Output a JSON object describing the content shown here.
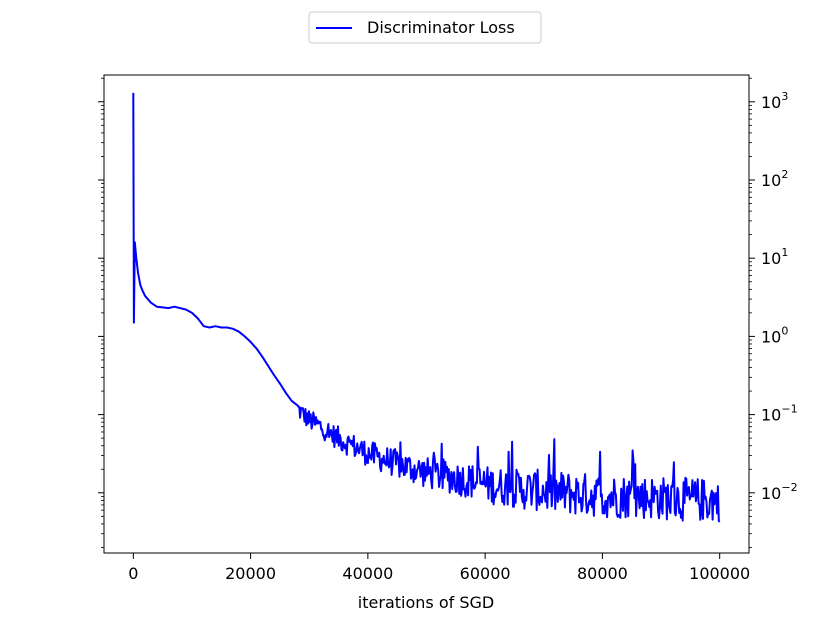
{
  "chart_data": {
    "type": "line",
    "xlabel": "iterations of SGD",
    "ylabel": "",
    "yscale": "log",
    "y_axis_side": "right",
    "xlim": [
      -5000,
      105000
    ],
    "ylim": [
      0.0017,
      2200
    ],
    "x_ticks": [
      0,
      20000,
      40000,
      60000,
      80000,
      100000
    ],
    "x_tick_labels": [
      "0",
      "20000",
      "40000",
      "60000",
      "80000",
      "100000"
    ],
    "y_ticks": [
      0.01,
      0.1,
      1,
      10,
      100,
      1000
    ],
    "y_tick_labels": [
      {
        "base": "10",
        "exp": "−2"
      },
      {
        "base": "10",
        "exp": "−1"
      },
      {
        "base": "10",
        "exp": "0"
      },
      {
        "base": "10",
        "exp": "1"
      },
      {
        "base": "10",
        "exp": "2"
      },
      {
        "base": "10",
        "exp": "3"
      }
    ],
    "grid": false,
    "legend": {
      "position": "top-center",
      "entries": [
        {
          "label": "Discriminator Loss",
          "color": "#0000ff"
        }
      ]
    },
    "series": [
      {
        "name": "Discriminator Loss",
        "color": "#0000ff",
        "x": [
          0,
          100,
          250,
          500,
          800,
          1200,
          1600,
          2000,
          3000,
          4000,
          5000,
          6000,
          7000,
          8000,
          9000,
          10000,
          11000,
          12000,
          13000,
          14000,
          15000,
          16000,
          17000,
          18000,
          19000,
          20000,
          21000,
          22000,
          23000,
          24000,
          25000,
          26000,
          27000,
          28000,
          29000,
          30000,
          32000,
          34000,
          36000,
          38000,
          40000,
          42000,
          44000,
          46000,
          48000,
          50000,
          52000,
          54000,
          56000,
          58000,
          60000,
          62000,
          64000,
          66000,
          68000,
          70000,
          72000,
          74000,
          76000,
          78000,
          80000,
          82000,
          84000,
          86000,
          88000,
          90000,
          92000,
          94000,
          96000,
          98000,
          100000
        ],
        "values": [
          1300,
          1.5,
          16,
          10,
          6.5,
          4.5,
          3.8,
          3.3,
          2.7,
          2.4,
          2.35,
          2.3,
          2.4,
          2.3,
          2.2,
          2.0,
          1.7,
          1.35,
          1.3,
          1.35,
          1.3,
          1.3,
          1.25,
          1.15,
          1.0,
          0.85,
          0.7,
          0.55,
          0.42,
          0.32,
          0.25,
          0.19,
          0.15,
          0.12,
          0.1,
          0.085,
          0.07,
          0.055,
          0.045,
          0.038,
          0.032,
          0.028,
          0.025,
          0.022,
          0.02,
          0.018,
          0.017,
          0.016,
          0.015,
          0.014,
          0.013,
          0.012,
          0.012,
          0.011,
          0.011,
          0.0105,
          0.01,
          0.01,
          0.0095,
          0.0095,
          0.009,
          0.009,
          0.009,
          0.0088,
          0.0088,
          0.0085,
          0.0085,
          0.0082,
          0.0082,
          0.008,
          0.008
        ],
        "noise": {
          "from_x": 28000,
          "amplitude_log10": 0.28,
          "spikes_to": 0.05
        }
      }
    ]
  }
}
